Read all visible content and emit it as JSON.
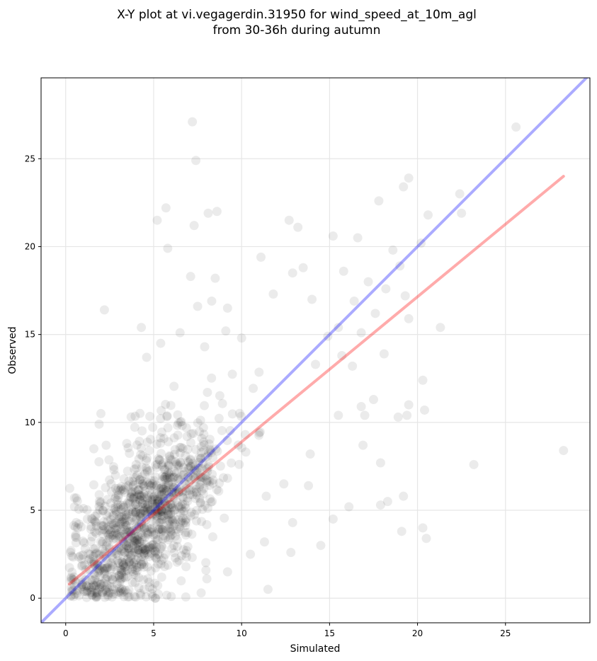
{
  "chart_data": {
    "type": "scatter",
    "title_line1": "X-Y plot at vi.vegagerdin.31950 for wind_speed_at_10m_agl",
    "title_line2": "from 30-36h during autumn",
    "xlabel": "Simulated",
    "ylabel": "Observed",
    "xlim": [
      -1.4,
      29.8
    ],
    "ylim": [
      -1.4,
      29.6
    ],
    "xticks": [
      0,
      5,
      10,
      15,
      20,
      25
    ],
    "yticks": [
      0,
      5,
      10,
      15,
      20,
      25
    ],
    "grid": true,
    "identity_line": {
      "name": "",
      "color": "#0000ff",
      "from": [
        -1.4,
        -1.4
      ],
      "to": [
        29.8,
        29.8
      ]
    },
    "fit_line": {
      "name": "",
      "color": "#ff0000",
      "from": [
        0.2,
        0.8
      ],
      "to": [
        28.3,
        24.0
      ]
    },
    "point_color": "#000000",
    "outlier_points": [
      [
        7.2,
        27.1
      ],
      [
        7.4,
        24.9
      ],
      [
        5.2,
        21.5
      ],
      [
        5.7,
        22.2
      ],
      [
        7.3,
        21.2
      ],
      [
        8.1,
        21.9
      ],
      [
        8.6,
        22.0
      ],
      [
        5.8,
        19.9
      ],
      [
        2.2,
        16.4
      ],
      [
        4.3,
        15.4
      ],
      [
        7.1,
        18.3
      ],
      [
        8.5,
        18.2
      ],
      [
        9.2,
        16.5
      ],
      [
        11.1,
        19.4
      ],
      [
        12.7,
        21.5
      ],
      [
        13.2,
        21.1
      ],
      [
        15.2,
        20.6
      ],
      [
        16.6,
        20.5
      ],
      [
        17.8,
        22.6
      ],
      [
        19.2,
        23.4
      ],
      [
        19.5,
        23.9
      ],
      [
        20.6,
        21.8
      ],
      [
        22.4,
        23.0
      ],
      [
        22.5,
        21.9
      ],
      [
        25.6,
        26.8
      ],
      [
        20.2,
        20.2
      ],
      [
        19.0,
        18.9
      ],
      [
        18.6,
        19.8
      ],
      [
        19.3,
        17.2
      ],
      [
        21.3,
        15.4
      ],
      [
        19.5,
        15.9
      ],
      [
        20.3,
        12.4
      ],
      [
        20.4,
        10.7
      ],
      [
        19.5,
        11.0
      ],
      [
        18.9,
        10.3
      ],
      [
        19.4,
        10.4
      ],
      [
        28.3,
        8.4
      ],
      [
        23.2,
        7.6
      ],
      [
        17.5,
        11.3
      ],
      [
        17.9,
        7.7
      ],
      [
        19.2,
        5.8
      ],
      [
        18.3,
        5.5
      ],
      [
        17.9,
        5.3
      ],
      [
        19.1,
        3.8
      ],
      [
        20.3,
        4.0
      ],
      [
        20.5,
        3.4
      ],
      [
        15.2,
        4.5
      ],
      [
        16.1,
        5.2
      ],
      [
        14.5,
        3.0
      ],
      [
        12.8,
        2.6
      ],
      [
        11.5,
        0.5
      ],
      [
        15.8,
        18.6
      ],
      [
        14.0,
        17.0
      ],
      [
        13.5,
        18.8
      ],
      [
        12.9,
        18.5
      ],
      [
        16.4,
        16.9
      ],
      [
        17.2,
        18.0
      ],
      [
        15.5,
        15.4
      ],
      [
        16.8,
        15.1
      ],
      [
        13.9,
        8.2
      ],
      [
        16.9,
        8.7
      ],
      [
        11.8,
        17.3
      ],
      [
        10.0,
        14.8
      ],
      [
        9.1,
        15.2
      ],
      [
        8.3,
        16.9
      ],
      [
        7.5,
        16.6
      ],
      [
        6.5,
        15.1
      ],
      [
        7.9,
        14.3
      ],
      [
        5.4,
        14.5
      ],
      [
        4.6,
        13.7
      ],
      [
        2.0,
        10.5
      ],
      [
        1.9,
        9.9
      ],
      [
        1.6,
        8.5
      ],
      [
        2.3,
        8.7
      ],
      [
        0.6,
        5.7
      ],
      [
        0.5,
        5.2
      ],
      [
        0.6,
        4.3
      ],
      [
        1.9,
        0.5
      ],
      [
        3.9,
        0.1
      ],
      [
        5.1,
        0.0
      ],
      [
        6.0,
        0.1
      ],
      [
        7.7,
        0.3
      ],
      [
        9.2,
        1.5
      ],
      [
        10.5,
        2.5
      ],
      [
        11.3,
        3.2
      ],
      [
        12.9,
        4.3
      ],
      [
        14.2,
        13.3
      ],
      [
        14.9,
        14.9
      ],
      [
        15.7,
        13.8
      ],
      [
        18.1,
        13.9
      ],
      [
        17.6,
        16.2
      ],
      [
        18.2,
        17.6
      ],
      [
        16.3,
        13.2
      ],
      [
        17.0,
        10.4
      ],
      [
        16.8,
        10.9
      ],
      [
        15.5,
        10.4
      ],
      [
        13.8,
        6.4
      ],
      [
        12.4,
        6.5
      ],
      [
        11.4,
        5.8
      ],
      [
        11.0,
        9.4
      ]
    ],
    "dense_cluster": {
      "count": 1100,
      "seed": 31950,
      "x_range": [
        0.2,
        13.0
      ],
      "x_center": 4.5,
      "x_spread": 2.2,
      "slope": 0.82,
      "intercept": 0.8,
      "y_spread": 2.2
    }
  }
}
